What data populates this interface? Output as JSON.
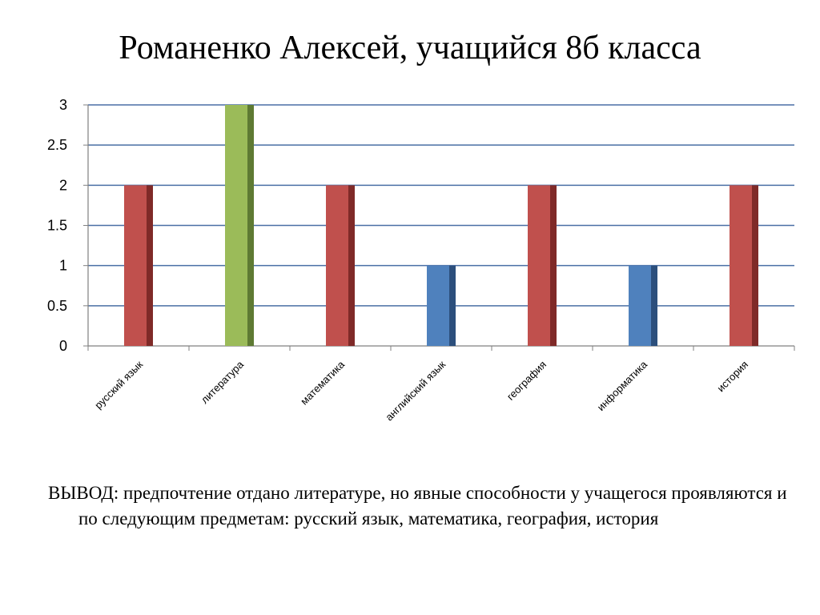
{
  "slide": {
    "title": "Романенко Алексей, учащийся 8б  класса"
  },
  "chart_data": {
    "type": "bar",
    "title": "",
    "xlabel": "",
    "ylabel": "",
    "categories": [
      "русский язык",
      "литература",
      "математика",
      "английский язык",
      "география",
      "информатика",
      "история"
    ],
    "values": [
      2,
      3,
      2,
      1,
      2,
      1,
      2
    ],
    "bar_colors": [
      "#C0504D",
      "#9BBB59",
      "#C0504D",
      "#4F81BD",
      "#C0504D",
      "#4F81BD",
      "#C0504D"
    ],
    "bar_side_colors": [
      "#7F2A28",
      "#5E7A33",
      "#7F2A28",
      "#2C4F7C",
      "#7F2A28",
      "#2C4F7C",
      "#7F2A28"
    ],
    "ylim": [
      0,
      3
    ],
    "yticks": [
      "0",
      "0.5",
      "1",
      "1.5",
      "2",
      "2.5",
      "3"
    ],
    "grid": true,
    "gridline_color": "#4A6FA5",
    "legend": "none"
  },
  "conclusion": {
    "text": "ВЫВОД: предпочтение отдано литературе, но явные способности у учащегося проявляются и по следующим предметам: русский язык, математика, география, история"
  }
}
